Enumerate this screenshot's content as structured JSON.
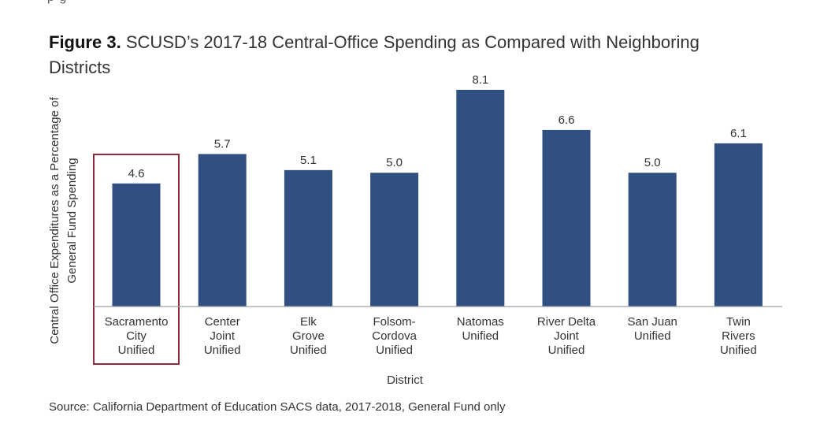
{
  "header_fragment": "p  g",
  "figure": {
    "number": "Figure 3.",
    "title": "SCUSD’s 2017-18 Central-Office Spending as Compared with Neighboring Districts"
  },
  "source": "Source: California Department of Education SACS data, 2017-2018, General Fund only",
  "chart_data": {
    "type": "bar",
    "categories": [
      [
        "Sacramento",
        "City",
        "Unified"
      ],
      [
        "Center",
        "Joint",
        "Unified"
      ],
      [
        "Elk",
        "Grove",
        "Unified"
      ],
      [
        "Folsom-",
        "Cordova",
        "Unified"
      ],
      [
        "Natomas",
        "Unified"
      ],
      [
        "River Delta",
        "Joint",
        "Unified"
      ],
      [
        "San Juan",
        "Unified"
      ],
      [
        "Twin",
        "Rivers",
        "Unified"
      ]
    ],
    "values": [
      4.6,
      5.7,
      5.1,
      5.0,
      8.1,
      6.6,
      5.0,
      6.1
    ],
    "data_labels": [
      "4.6",
      "5.7",
      "5.1",
      "5.0",
      "8.1",
      "6.6",
      "5.0",
      "6.1"
    ],
    "xlabel": "District",
    "ylabel": [
      "Central Office Expenditures as a Percentage of",
      "General Fund Spending"
    ],
    "ylim": [
      0,
      8.1
    ],
    "highlighted_category_index": 0,
    "colors": {
      "bar": "#2f5081",
      "highlight_box": "#8b2b3a",
      "axis": "#9aa0a6",
      "text": "#333333"
    },
    "grid": false
  }
}
